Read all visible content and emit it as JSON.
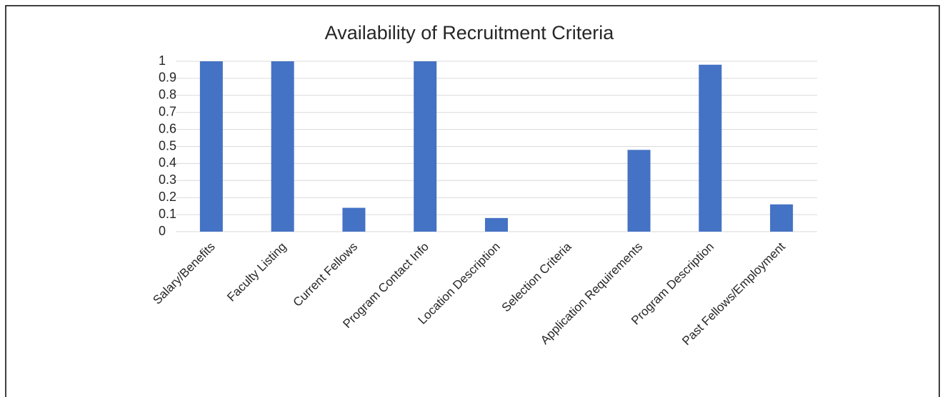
{
  "chart_data": {
    "type": "bar",
    "title": "Availability of Recruitment Criteria",
    "categories": [
      "Salary/Benefits",
      "Faculty Listing",
      "Current Fellows",
      "Program Contact Info",
      "Location Description",
      "Selection Criteria",
      "Application Requirements",
      "Program Description",
      "Past Fellows/Employment"
    ],
    "values": [
      1,
      1,
      0.14,
      1,
      0.08,
      0,
      0.48,
      0.98,
      0.16
    ],
    "color": "#4472c4",
    "ylim": [
      0,
      1
    ],
    "yticks": [
      0,
      0.1,
      0.2,
      0.3,
      0.4,
      0.5,
      0.6,
      0.7,
      0.8,
      0.9,
      1
    ],
    "grid": true
  }
}
